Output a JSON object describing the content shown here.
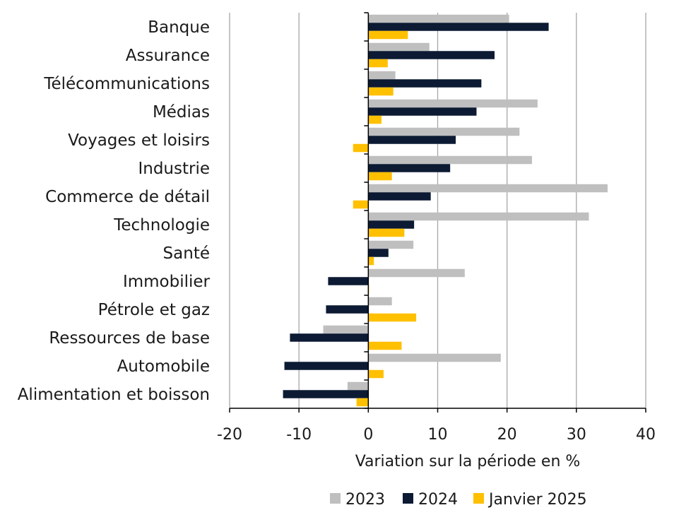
{
  "chart_data": {
    "type": "bar",
    "orientation": "horizontal",
    "title": "",
    "xlabel": "Variation sur la période en %",
    "ylabel": "",
    "xlim": [
      -20,
      40
    ],
    "xticks": [
      -20,
      -10,
      0,
      10,
      20,
      30,
      40
    ],
    "grid": true,
    "legend_position": "bottom",
    "categories": [
      "Banque",
      "Assurance",
      "Télécommunications",
      "Médias",
      "Voyages et loisirs",
      "Industrie",
      "Commerce de détail",
      "Technologie",
      "Santé",
      "Immobilier",
      "Pétrole et gaz",
      "Ressources de base",
      "Automobile",
      "Alimentation et boisson"
    ],
    "series": [
      {
        "name": "2023",
        "color": "#bfbfbf",
        "values": [
          20.3,
          8.8,
          3.9,
          24.4,
          21.8,
          23.6,
          34.5,
          31.8,
          6.5,
          13.9,
          3.4,
          -6.5,
          19.1,
          -3.0
        ]
      },
      {
        "name": "2024",
        "color": "#0c1a33",
        "values": [
          26.0,
          18.2,
          16.3,
          15.6,
          12.6,
          11.8,
          9.0,
          6.6,
          2.9,
          -5.8,
          -6.1,
          -11.3,
          -12.1,
          -12.3
        ]
      },
      {
        "name": "Janvier 2025",
        "color": "#ffc000",
        "values": [
          5.7,
          2.8,
          3.6,
          1.9,
          -2.2,
          3.4,
          -2.2,
          5.2,
          0.8,
          0.1,
          6.9,
          4.8,
          2.2,
          -1.7
        ]
      }
    ]
  }
}
